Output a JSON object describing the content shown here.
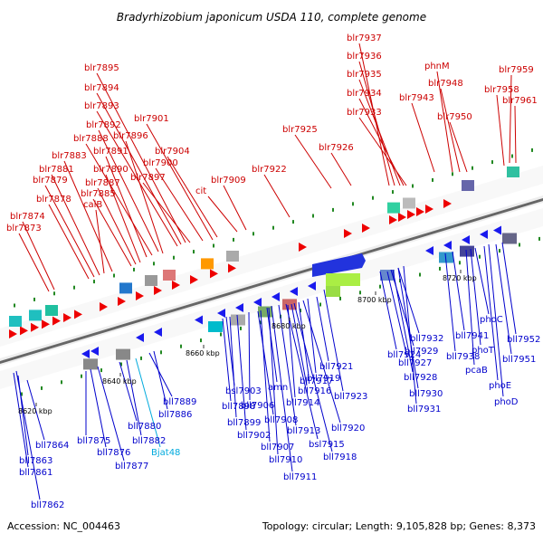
{
  "title": "Bradyrhizobium japonicum USDA 110, complete genome",
  "accession": "Accession: NC_004463",
  "topology": "Topology: circular; Length: 9,105,828 bp; Genes: 8,373",
  "scale_labels": [
    "8620 kbp",
    "8640 kbp",
    "8660 kbp",
    "8680 kbp",
    "8700 kbp",
    "8720 kbp"
  ],
  "top_labels": [
    "blr7937",
    "blr7936",
    "blr7935",
    "blr7934",
    "blr7933",
    "blr7943",
    "phnM",
    "blr7948",
    "blr7950",
    "blr7959",
    "blr7958",
    "blr7961",
    "blr7895",
    "blr7894",
    "blr7893",
    "blr7892",
    "blr7901",
    "blr7888",
    "blr7896",
    "blr7891",
    "blr7904",
    "blr7883",
    "blr7890",
    "blr7900",
    "blr7881",
    "blr7897",
    "blr7879",
    "blr7887",
    "blr7885",
    "blr7878",
    "calB",
    "cit",
    "blr7909",
    "blr7874",
    "blr7873",
    "blr7922",
    "blr7925",
    "blr7926"
  ],
  "bottom_labels": [
    "bll7864",
    "bll7863",
    "bll7861",
    "bll7862",
    "bll7875",
    "bll7876",
    "bll7877",
    "bll7880",
    "bll7882",
    "Bjat48",
    "bll7889",
    "bll7886",
    "bsl7903",
    "bll7898",
    "bll7899",
    "bll7902",
    "bll7906",
    "bll7908",
    "bll7907",
    "amn",
    "bll7910",
    "bll7911",
    "bll7913",
    "bsl7915",
    "bll7918",
    "bll7914",
    "bll7916",
    "bll7917",
    "bll7920",
    "bll7919",
    "bll7921",
    "bll7923",
    "bll7924",
    "bll7932",
    "bll7929",
    "bll7927",
    "bll7928",
    "bll7930",
    "bll7931",
    "bll7941",
    "bll7938",
    "pcaB",
    "phoT",
    "phoC",
    "phoE",
    "phoD",
    "bll7952",
    "bll7951"
  ],
  "colors": {
    "top": "#cc0000",
    "bottom": "#0000cc",
    "special": "#00aadd",
    "axis": "#888888"
  }
}
